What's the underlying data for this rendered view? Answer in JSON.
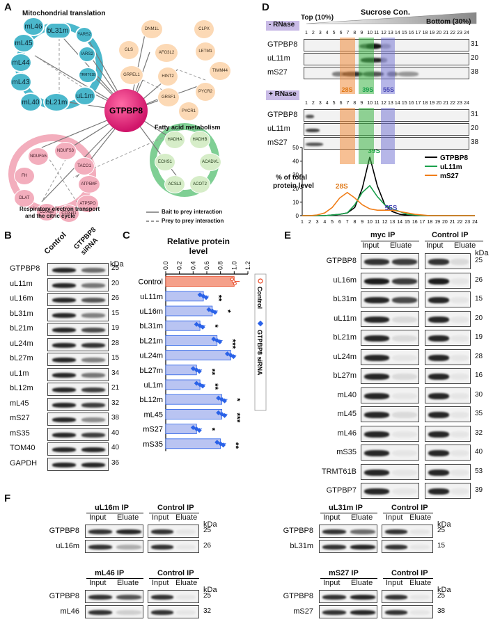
{
  "panels": {
    "A": "A",
    "B": "B",
    "C": "C",
    "D": "D",
    "E": "E",
    "F": "F"
  },
  "panelA": {
    "hub": "GTPBP8",
    "clusters": {
      "mito": "Mitochondrial translation",
      "fatty": "Fatty acid metabolism",
      "resp_line1": "Respiratory electron transport",
      "resp_line2": "and the citric cycle"
    },
    "teal_nodes": [
      "bL31m",
      "YARS2",
      "IARS2",
      "TRMT61B",
      "uL1m",
      "bL21m",
      "mL40",
      "mL43",
      "mL44",
      "mL45",
      "mL46"
    ],
    "peach_nodes": [
      "DNM1L",
      "CLPX",
      "GLS",
      "AFG3L2",
      "LETM1",
      "TIMM44",
      "GRPEL1",
      "HINT2",
      "GRSF1",
      "PYCR2",
      "PYCR1"
    ],
    "pink_nodes": [
      "NDUFS3",
      "NDUFA5",
      "TACO1",
      "FH",
      "ATP5MF",
      "DLAT",
      "ATP5PO",
      "COX5B",
      "COX4I1"
    ],
    "green_nodes": [
      "HADHA",
      "HADHB",
      "ECHS1",
      "ACADVL",
      "ACSL3",
      "ACOT2"
    ],
    "legend": {
      "solid": "Bait to prey interaction",
      "dashed": "Prey to prey interaction"
    }
  },
  "panelB": {
    "col_control": "Control",
    "col_sirna_1": "GTPBP8",
    "col_sirna_2": "siRNA",
    "kda": "kDa",
    "rows": [
      {
        "name": "GTPBP8",
        "kda": "25"
      },
      {
        "name": "uL11m",
        "kda": "20"
      },
      {
        "name": "uL16m",
        "kda": "26"
      },
      {
        "name": "bL31m",
        "kda": "15"
      },
      {
        "name": "bL21m",
        "kda": "19"
      },
      {
        "name": "uL24m",
        "kda": "28"
      },
      {
        "name": "bL27m",
        "kda": "15"
      },
      {
        "name": "uL1m",
        "kda": "34"
      },
      {
        "name": "bL12m",
        "kda": "21"
      },
      {
        "name": "mL45",
        "kda": "32"
      },
      {
        "name": "mS27",
        "kda": "38"
      },
      {
        "name": "mS35",
        "kda": "40"
      },
      {
        "name": "TOM40",
        "kda": "40"
      },
      {
        "name": "GAPDH",
        "kda": "36"
      }
    ]
  },
  "chart_data": {
    "type": "bar",
    "title": "Relative protein level",
    "categories": [
      "Control",
      "uL11m",
      "uL16m",
      "bL31m",
      "bL21m",
      "uL24m",
      "bL27m",
      "uL1m",
      "bL12m",
      "mL45",
      "mS27",
      "mS35"
    ],
    "values": [
      1.0,
      0.55,
      0.68,
      0.5,
      0.75,
      0.95,
      0.45,
      0.5,
      0.82,
      0.82,
      0.45,
      0.8
    ],
    "significance": [
      "",
      "**",
      "*",
      "*",
      "***",
      "",
      "**",
      "**",
      "*",
      "***",
      "*",
      "**"
    ],
    "xlim": [
      0,
      1.2
    ],
    "ticks": [
      "0.0",
      "0.2",
      "0.4",
      "0.6",
      "0.8",
      "1.0",
      "1.2"
    ],
    "legend": [
      "Control",
      "GTPBP8 siRNA"
    ],
    "colors": {
      "control": "#f5a08a",
      "sirna": "#b9c4f2",
      "sirna_dot": "#2a62e8",
      "control_dot": "#e8431f"
    }
  },
  "panelD": {
    "top": "Top (10%)",
    "sucrose": "Sucrose Con.",
    "bottom": "Bottom (30%)",
    "minus_rnase": "- RNase",
    "plus_rnase": "+ RNase",
    "fractions": [
      "1",
      "2",
      "3",
      "4",
      "5",
      "6",
      "7",
      "8",
      "9",
      "10",
      "11",
      "12",
      "13",
      "14",
      "15",
      "16",
      "17",
      "18",
      "19",
      "20",
      "21",
      "22",
      "23",
      "24"
    ],
    "rows": [
      {
        "name": "GTPBP8",
        "kda": "31"
      },
      {
        "name": "uL11m",
        "kda": "20"
      },
      {
        "name": "mS27",
        "kda": "38"
      }
    ],
    "markers": {
      "s28": "28S",
      "s39": "39S",
      "s55": "55S"
    },
    "ylabel_1": "% of total",
    "ylabel_2": "protein level",
    "yticks": [
      "0",
      "10",
      "20",
      "30",
      "40",
      "50"
    ],
    "legend": [
      "GTPBP8",
      "uL11m",
      "mS27"
    ],
    "series_colors": [
      "#000000",
      "#1aa04b",
      "#f07d18"
    ]
  },
  "panelE": {
    "myc_ip": "myc IP",
    "control_ip": "Control IP",
    "input": "Input",
    "eluate": "Eluate",
    "kda": "kDa",
    "rows": [
      {
        "name": "GTPBP8",
        "kda": "25"
      },
      {
        "name": "uL16m",
        "kda": "26"
      },
      {
        "name": "bL31m",
        "kda": "15"
      },
      {
        "name": "uL11m",
        "kda": "20"
      },
      {
        "name": "bL21m",
        "kda": "19"
      },
      {
        "name": "uL24m",
        "kda": "28"
      },
      {
        "name": "bL27m",
        "kda": "16"
      },
      {
        "name": "mL40",
        "kda": "30"
      },
      {
        "name": "mL45",
        "kda": "35"
      },
      {
        "name": "mL46",
        "kda": "32"
      },
      {
        "name": "mS35",
        "kda": "40"
      },
      {
        "name": "TRMT61B",
        "kda": "53"
      },
      {
        "name": "GTPBP7",
        "kda": "39"
      }
    ]
  },
  "panelF": {
    "input": "Input",
    "eluate": "Eluate",
    "kda": "kDa",
    "control_ip": "Control IP",
    "blocks": [
      {
        "ip": "uL16m IP",
        "rows": [
          {
            "name": "GTPBP8",
            "kda": "25"
          },
          {
            "name": "uL16m",
            "kda": "26"
          }
        ]
      },
      {
        "ip": "uL31m IP",
        "rows": [
          {
            "name": "GTPBP8",
            "kda": "25"
          },
          {
            "name": "bL31m",
            "kda": "15"
          }
        ]
      },
      {
        "ip": "mL46 IP",
        "rows": [
          {
            "name": "GTPBP8",
            "kda": "25"
          },
          {
            "name": "mL46",
            "kda": "32"
          }
        ]
      },
      {
        "ip": "mS27 IP",
        "rows": [
          {
            "name": "GTPBP8",
            "kda": "25"
          },
          {
            "name": "mS27",
            "kda": "38"
          }
        ]
      }
    ]
  }
}
